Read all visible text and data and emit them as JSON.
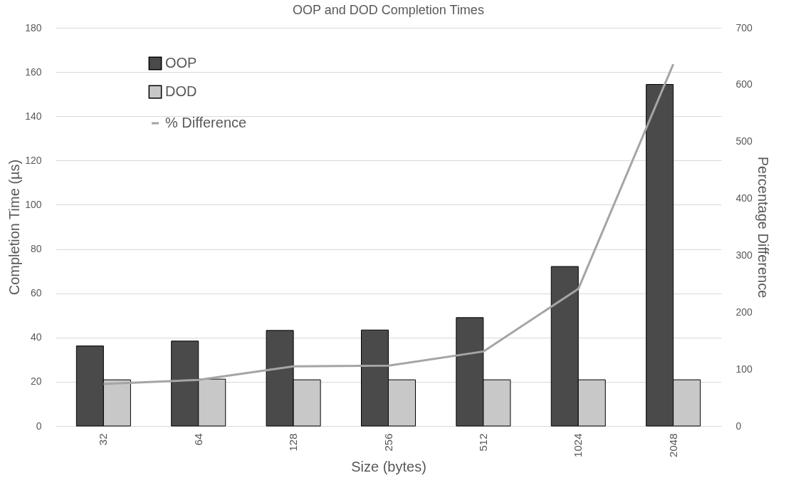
{
  "chart_data": {
    "type": "bar",
    "title": "OOP and DOD Completion Times",
    "xlabel": "Size (bytes)",
    "ylabel": "Completion Time (µs)",
    "y2label": "Percentage Difference",
    "categories": [
      "32",
      "64",
      "128",
      "256",
      "512",
      "1024",
      "2048"
    ],
    "series": [
      {
        "name": "OOP",
        "color": "#4a4a4a",
        "values": [
          36.2,
          38.4,
          43.2,
          43.4,
          49,
          72.1,
          154.4
        ]
      },
      {
        "name": "DOD",
        "color": "#c8c8c8",
        "values": [
          20.9,
          21.2,
          20.9,
          20.9,
          20.9,
          20.9,
          20.9
        ]
      },
      {
        "name": "% Difference",
        "type": "line",
        "axis": "y2",
        "color": "#a5a5a5",
        "values": [
          74,
          81,
          105,
          106,
          131,
          241,
          636
        ]
      }
    ],
    "ylim": [
      0,
      180
    ],
    "yticks": [
      0,
      20,
      40,
      60,
      80,
      100,
      120,
      140,
      160,
      180
    ],
    "y2lim": [
      0,
      700
    ],
    "y2ticks": [
      0,
      100,
      200,
      300,
      400,
      500,
      600,
      700
    ],
    "grid": "y",
    "legend": "top left"
  }
}
